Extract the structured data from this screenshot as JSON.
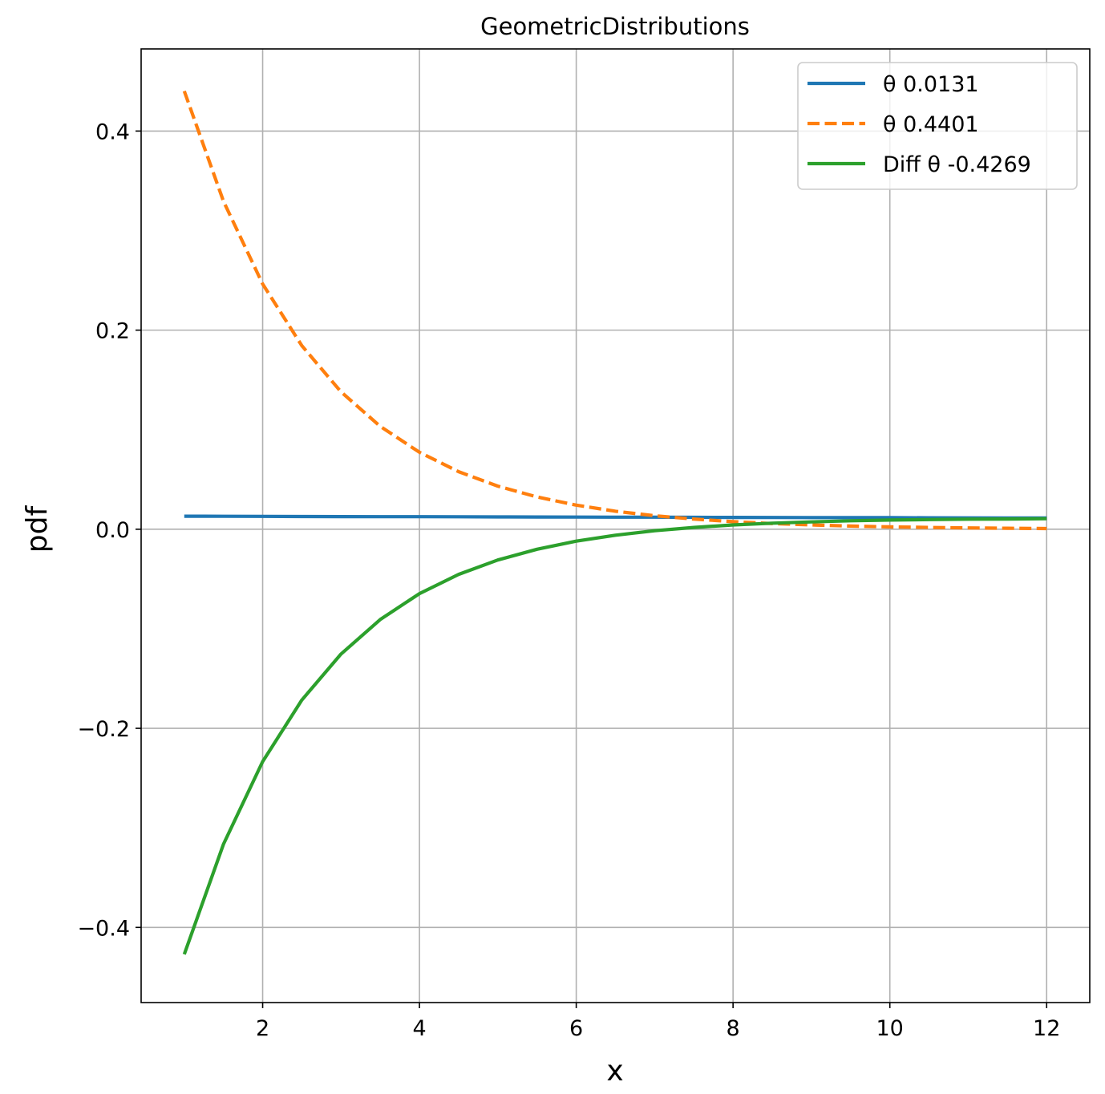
{
  "chart_data": {
    "type": "line",
    "title": "GeometricDistributions",
    "xlabel": "x",
    "ylabel": "pdf",
    "xlim": [
      0.45,
      12.55
    ],
    "ylim": [
      -0.4755,
      0.4825
    ],
    "xticks": [
      2,
      4,
      6,
      8,
      10,
      12
    ],
    "xtick_labels": [
      "2",
      "4",
      "6",
      "8",
      "10",
      "12"
    ],
    "yticks": [
      -0.4,
      -0.2,
      0.0,
      0.2,
      0.4
    ],
    "ytick_labels": [
      "−0.4",
      "−0.2",
      "0.0",
      "0.2",
      "0.4"
    ],
    "grid": true,
    "legend_position": "top-right",
    "x": [
      1,
      1.5,
      2,
      2.5,
      3,
      3.5,
      4,
      4.5,
      5,
      5.5,
      6,
      6.5,
      7,
      7.5,
      8,
      8.5,
      9,
      9.5,
      10,
      10.5,
      11,
      11.5,
      12
    ],
    "series": [
      {
        "name": "θ 0.0131",
        "color": "#1f77b4",
        "dash": "solid",
        "values": [
          0.0131,
          0.013,
          0.0129,
          0.0128,
          0.0127,
          0.0126,
          0.0126,
          0.0125,
          0.0124,
          0.0123,
          0.0122,
          0.0121,
          0.0121,
          0.012,
          0.0119,
          0.0118,
          0.0117,
          0.0117,
          0.0116,
          0.0115,
          0.0114,
          0.0113,
          0.0113
        ]
      },
      {
        "name": "θ  0.4401",
        "color": "#ff7f0e",
        "dash": "dashed",
        "values": [
          0.4401,
          0.3294,
          0.2464,
          0.1844,
          0.138,
          0.1033,
          0.0773,
          0.0578,
          0.0433,
          0.0324,
          0.0242,
          0.0181,
          0.0136,
          0.0102,
          0.0076,
          0.0057,
          0.0043,
          0.0032,
          0.0024,
          0.0018,
          0.0013,
          0.001,
          0.0007
        ]
      },
      {
        "name": "Diff θ -0.4269",
        "color": "#2ca02c",
        "dash": "solid",
        "values": [
          -0.427,
          -0.3164,
          -0.2335,
          -0.1716,
          -0.1253,
          -0.0907,
          -0.0647,
          -0.0453,
          -0.0309,
          -0.0201,
          -0.012,
          -0.006,
          -0.0015,
          0.0018,
          0.0043,
          0.0061,
          0.0074,
          0.0085,
          0.0092,
          0.0097,
          0.0101,
          0.0103,
          0.0106
        ]
      }
    ]
  }
}
